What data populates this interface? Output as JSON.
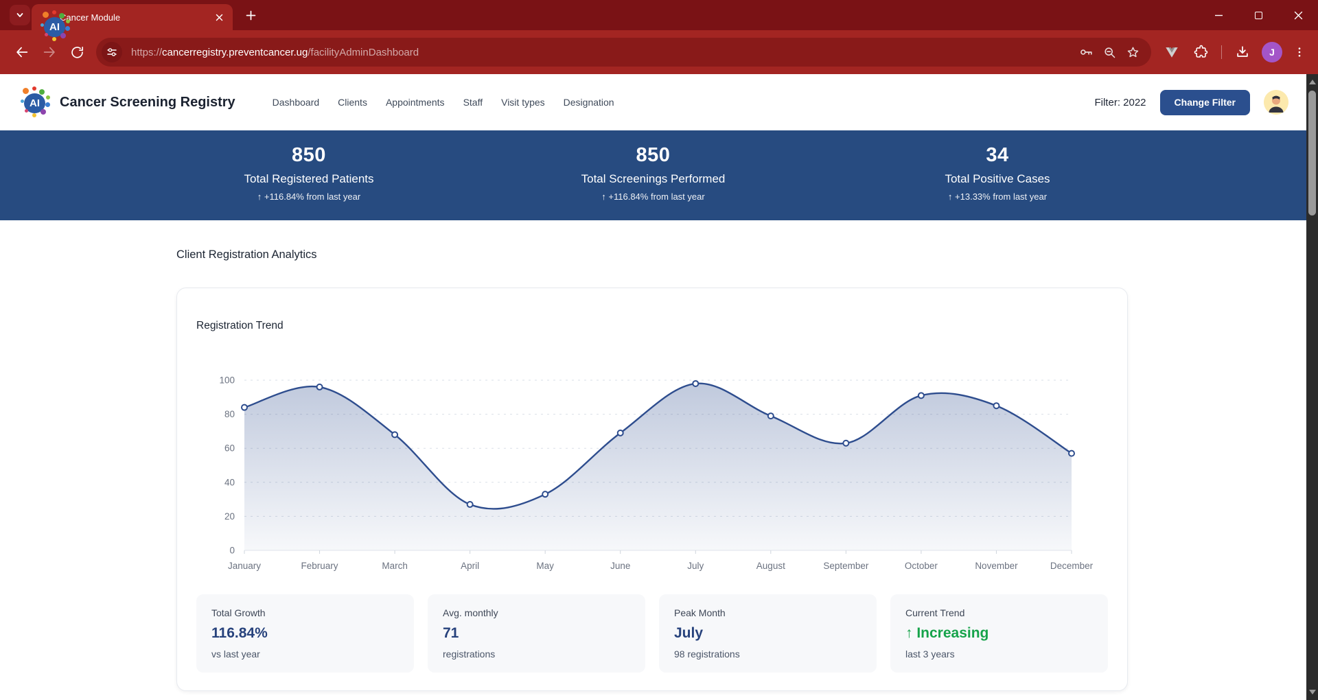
{
  "browser": {
    "tab_title": "Cancer Module",
    "url_scheme": "https://",
    "url_host": "cancerregistry.preventcancer.ug",
    "url_path": "/facilityAdminDashboard",
    "profile_initial": "J"
  },
  "header": {
    "brand": "Cancer Screening Registry",
    "logo_text": "AI",
    "nav": [
      "Dashboard",
      "Clients",
      "Appointments",
      "Staff",
      "Visit types",
      "Designation"
    ],
    "filter_label": "Filter: 2022",
    "change_filter": "Change Filter"
  },
  "stats": [
    {
      "value": "850",
      "label": "Total Registered Patients",
      "delta": "↑ +116.84% from last year"
    },
    {
      "value": "850",
      "label": "Total Screenings Performed",
      "delta": "↑ +116.84% from last year"
    },
    {
      "value": "34",
      "label": "Total Positive Cases",
      "delta": "↑ +13.33% from last year"
    }
  ],
  "section_title": "Client Registration Analytics",
  "chart_card": {
    "title": "Registration Trend",
    "summary_cards": [
      {
        "label": "Total Growth",
        "value": "116.84%",
        "sub": "vs last year"
      },
      {
        "label": "Avg. monthly",
        "value": "71",
        "sub": "registrations"
      },
      {
        "label": "Peak Month",
        "value": "July",
        "sub": "98 registrations"
      },
      {
        "label": "Current Trend",
        "value": "↑ Increasing",
        "sub": "last 3 years"
      }
    ]
  },
  "chart_data": {
    "type": "area",
    "title": "Registration Trend",
    "categories": [
      "January",
      "February",
      "March",
      "April",
      "May",
      "June",
      "July",
      "August",
      "September",
      "October",
      "November",
      "December"
    ],
    "values": [
      84,
      96,
      68,
      27,
      33,
      69,
      98,
      79,
      63,
      91,
      85,
      57
    ],
    "xlabel": "",
    "ylabel": "",
    "ylim": [
      0,
      100
    ],
    "yticks": [
      0,
      20,
      40,
      60,
      80,
      100
    ],
    "grid": "horizontal-dashed",
    "legend": "none",
    "line_color": "#2e4d8e",
    "point_style": "hollow-circle",
    "area_top": "rgba(46,77,142,0.30)",
    "area_bottom": "rgba(46,77,142,0.04)"
  },
  "colors": {
    "chrome_frame": "#7a1215",
    "chrome_toolbar": "#a32522",
    "urlbar": "#891a19",
    "banner_blue": "#274b80",
    "button_blue": "#2b4f8e",
    "line_blue": "#2e4d8e",
    "trend_green": "#16a34a",
    "value_blue": "#27427c"
  }
}
